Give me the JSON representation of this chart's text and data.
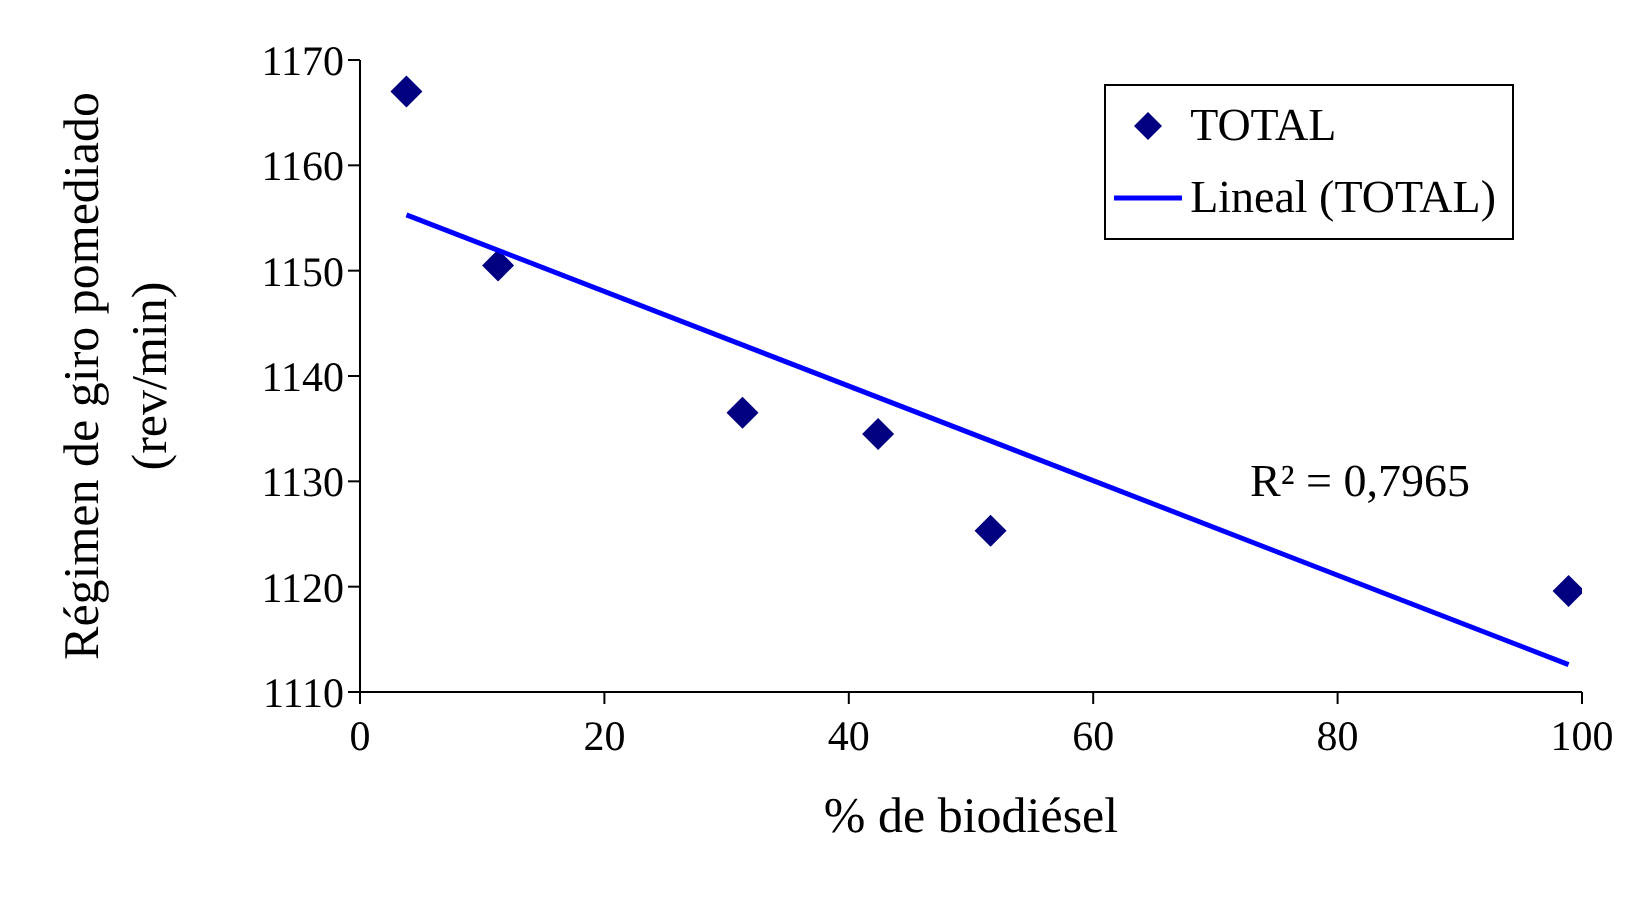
{
  "chart_data": {
    "type": "scatter",
    "xlabel": "% de biodiésel",
    "ylabel": "Régimen de giro pomediado\n(rev/min)",
    "xlim": [
      0,
      100
    ],
    "xticks": [
      0,
      20,
      40,
      60,
      80,
      100
    ],
    "ylim": [
      1110,
      1170
    ],
    "yticks": [
      1110,
      1120,
      1130,
      1140,
      1150,
      1160,
      1170
    ],
    "legend": "top right",
    "annotations": [
      "R² = 0,7965"
    ],
    "series": [
      {
        "name": "TOTAL",
        "color": "#000080",
        "marker": "diamond",
        "x": [
          3.8,
          11.3,
          31.3,
          42.4,
          51.6,
          98.9
        ],
        "values": [
          1167.0,
          1150.5,
          1136.5,
          1134.5,
          1125.3,
          1119.6
        ]
      },
      {
        "name": "Lineal (TOTAL)",
        "type": "line",
        "color": "#0000ff",
        "marker": "none",
        "line_style": "solid",
        "x": [
          3.8,
          98.9
        ],
        "values": [
          1155.3,
          1112.6
        ]
      }
    ]
  }
}
